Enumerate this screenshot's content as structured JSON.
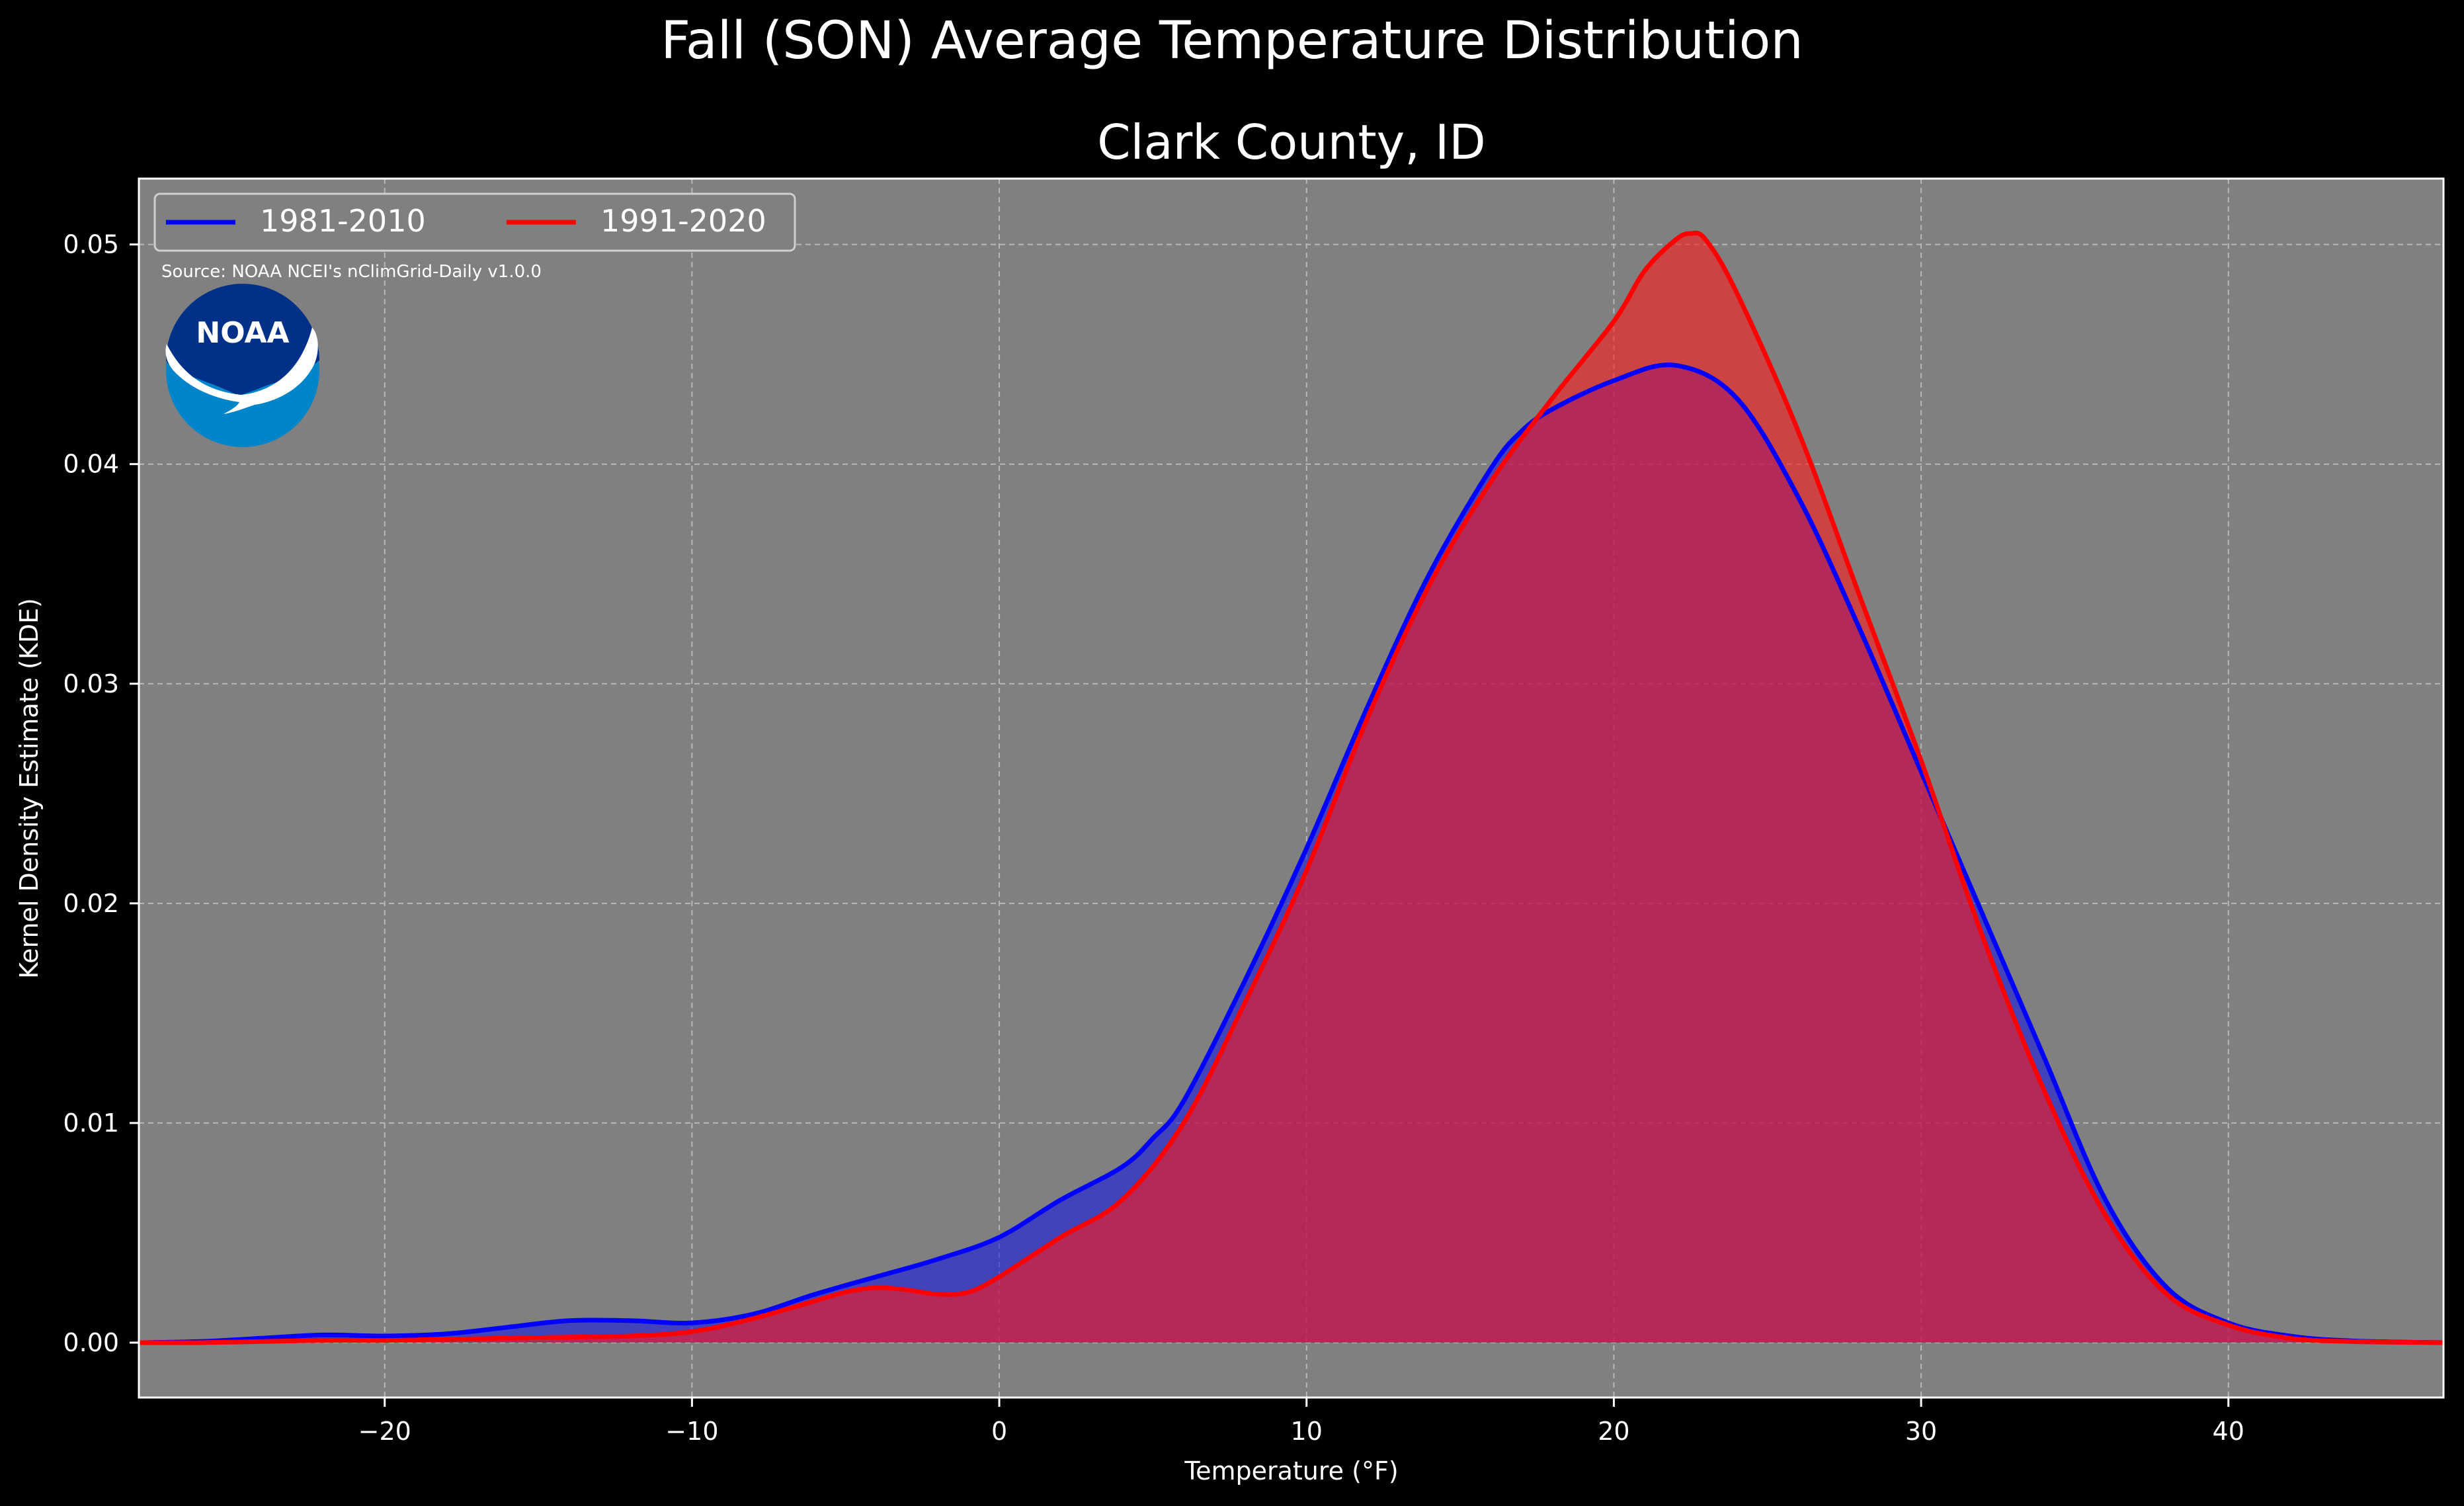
{
  "chart_data": {
    "type": "area",
    "title": "Fall (SON) Average Temperature Distribution",
    "subtitle": "Clark County, ID",
    "xlabel": "Temperature (°F)",
    "ylabel": "Kernel Density Estimate (KDE)",
    "xlim": [
      -28,
      47
    ],
    "ylim": [
      -0.0025,
      0.053
    ],
    "x_ticks": [
      -20,
      -10,
      0,
      10,
      20,
      30,
      40
    ],
    "x_tick_labels": [
      "−20",
      "−10",
      "0",
      "10",
      "20",
      "30",
      "40"
    ],
    "y_ticks": [
      0.0,
      0.01,
      0.02,
      0.03,
      0.04,
      0.05
    ],
    "y_tick_labels": [
      "0.00",
      "0.01",
      "0.02",
      "0.03",
      "0.04",
      "0.05"
    ],
    "grid": true,
    "legend_position": "top-left",
    "source_note": "Source: NOAA NCEI's nClimGrid-Daily v1.0.0",
    "logo_text": "NOAA",
    "background_color": "#000000",
    "plot_background_color": "#808080",
    "series": [
      {
        "name": "1981-2010",
        "color": "#0000ff",
        "fill_color": "#1a1ae0",
        "x": [
          -28,
          -26,
          -24,
          -22,
          -20,
          -18,
          -16,
          -14,
          -12,
          -10,
          -8,
          -6,
          -4,
          -2,
          0,
          2,
          4,
          5,
          6,
          8,
          10,
          12,
          14,
          16,
          17,
          18,
          20,
          22,
          24,
          26,
          28,
          30,
          32,
          34,
          36,
          38,
          40,
          42,
          44,
          47
        ],
        "y": [
          0.0,
          5e-05,
          0.0002,
          0.00035,
          0.0003,
          0.0004,
          0.0007,
          0.001,
          0.001,
          0.0009,
          0.0013,
          0.0022,
          0.003,
          0.0038,
          0.0048,
          0.0065,
          0.008,
          0.0093,
          0.011,
          0.0165,
          0.0225,
          0.029,
          0.035,
          0.0398,
          0.0415,
          0.0425,
          0.0438,
          0.0445,
          0.043,
          0.0385,
          0.0325,
          0.026,
          0.0195,
          0.013,
          0.0065,
          0.0025,
          0.0009,
          0.0003,
          8e-05,
          0.0
        ]
      },
      {
        "name": "1991-2020",
        "color": "#ff0000",
        "fill_color": "#ff1a1a",
        "x": [
          -28,
          -26,
          -24,
          -22,
          -20,
          -18,
          -16,
          -14,
          -12,
          -10,
          -8,
          -6,
          -5,
          -4,
          -3,
          -2,
          -1,
          0,
          2,
          4,
          6,
          8,
          10,
          12,
          14,
          16,
          18,
          20,
          21,
          22,
          22.5,
          23,
          24,
          26,
          28,
          30,
          32,
          34,
          36,
          38,
          40,
          42,
          44,
          47
        ],
        "y": [
          0.0,
          0.0,
          5e-05,
          0.0001,
          0.0001,
          0.00015,
          0.0002,
          0.00025,
          0.0003,
          0.0005,
          0.0011,
          0.0019,
          0.0023,
          0.0025,
          0.0024,
          0.0022,
          0.0023,
          0.003,
          0.0048,
          0.0065,
          0.01,
          0.0155,
          0.0215,
          0.0285,
          0.0345,
          0.0392,
          0.043,
          0.0465,
          0.0488,
          0.0502,
          0.0505,
          0.0502,
          0.0478,
          0.0415,
          0.034,
          0.0265,
          0.0185,
          0.0115,
          0.0058,
          0.0022,
          0.0008,
          0.0002,
          5e-05,
          0.0
        ]
      }
    ]
  }
}
